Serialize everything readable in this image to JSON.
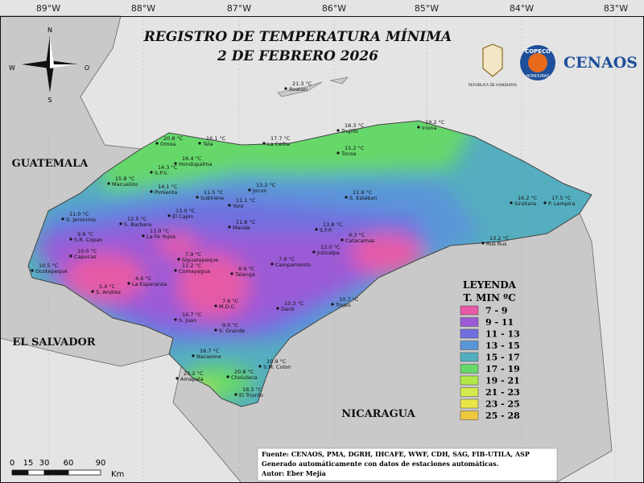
{
  "header": {
    "title_line1": "REGISTRO DE TEMPERATURA MÍNIMA",
    "title_line2": "2 DE FEBRERO 2026",
    "republic": "REPÚBLICA DE HONDURAS",
    "copeco": "COPECO",
    "copeco_sub": "HONDURAS",
    "cenaos": "CENAOS"
  },
  "longitudes": [
    "89°W",
    "88°W",
    "87°W",
    "86°W",
    "85°W",
    "84°W",
    "83°W"
  ],
  "compass": {
    "north": "N",
    "south": "S",
    "west": "W",
    "east": "O"
  },
  "countries": {
    "guatemala": "GUATEMALA",
    "el_salvador": "EL SALVADOR",
    "nicaragua": "NICARAGUA"
  },
  "stations": [
    {
      "temp": "21.3 °C",
      "name": "Roatan"
    },
    {
      "temp": "20.8 °C",
      "name": "Omoa"
    },
    {
      "temp": "16.1 °C",
      "name": "Tela"
    },
    {
      "temp": "17.7 °C",
      "name": "La Ceiba"
    },
    {
      "temp": "18.3 °C",
      "name": "Trujillo"
    },
    {
      "temp": "19.2 °C",
      "name": "Iriona"
    },
    {
      "temp": "16.4 °C",
      "name": "Hondupalma"
    },
    {
      "temp": "15.2 °C",
      "name": "Tocoa"
    },
    {
      "temp": "14.3 °C",
      "name": "S.P.S."
    },
    {
      "temp": "15.8 °C",
      "name": "Macuelizo"
    },
    {
      "temp": "14.1 °C",
      "name": "Pimienta"
    },
    {
      "temp": "13.2 °C",
      "name": "Jocon"
    },
    {
      "temp": "11.5 °C",
      "name": "Subirana"
    },
    {
      "temp": "11.1 °C",
      "name": "Yoro"
    },
    {
      "temp": "11.6 °C",
      "name": "S. Esteban"
    },
    {
      "temp": "16.2 °C",
      "name": "Sirsitara"
    },
    {
      "temp": "17.5 °C",
      "name": "P. Lempira"
    },
    {
      "temp": "13.0 °C",
      "name": "El Cajon"
    },
    {
      "temp": "11.0 °C",
      "name": "S. Jeronimo"
    },
    {
      "temp": "12.5 °C",
      "name": "S. Barbara"
    },
    {
      "temp": "11.8 °C",
      "name": "Marale"
    },
    {
      "temp": "13.8 °C",
      "name": "S.F.P."
    },
    {
      "temp": "11.0 °C",
      "name": "La Fe Yojoa"
    },
    {
      "temp": "9.8 °C",
      "name": "S.R. Copan"
    },
    {
      "temp": "9.3 °C",
      "name": "Catacamas"
    },
    {
      "temp": "13.2 °C",
      "name": "Rus Rus"
    },
    {
      "temp": "10.0 °C",
      "name": "Capucas"
    },
    {
      "temp": "12.0 °C",
      "name": "Juticalpa"
    },
    {
      "temp": "7.9 °C",
      "name": "Siguatepeque"
    },
    {
      "temp": "7.9 °C",
      "name": "Campamento"
    },
    {
      "temp": "10.5 °C",
      "name": "Ocotepeque"
    },
    {
      "temp": "11.2 °C",
      "name": "Comayagua"
    },
    {
      "temp": "8.9 °C",
      "name": "Talanga"
    },
    {
      "temp": "4.6 °C",
      "name": "La Esperanza"
    },
    {
      "temp": "5.4 °C",
      "name": "S. Andres"
    },
    {
      "temp": "7.6 °C",
      "name": "M.D.C."
    },
    {
      "temp": "10.3 °C",
      "name": "Danli"
    },
    {
      "temp": "10.7 °C",
      "name": "Trojes"
    },
    {
      "temp": "14.7 °C",
      "name": "S. Juan"
    },
    {
      "temp": "9.0 °C",
      "name": "S. Grande"
    },
    {
      "temp": "16.7 °C",
      "name": "Nacaome"
    },
    {
      "temp": "10.9 °C",
      "name": "S.M. Colon"
    },
    {
      "temp": "23.2 °C",
      "name": "Amapala"
    },
    {
      "temp": "20.8 °C",
      "name": "Choluteca"
    },
    {
      "temp": "18.3 °C",
      "name": "El Triunfo"
    }
  ],
  "legend": {
    "title": "LEYENDA",
    "subtitle": "T. MIN ºC",
    "items": [
      {
        "label": "7 - 9",
        "color": "#e65aa6"
      },
      {
        "label": "9 - 11",
        "color": "#9b5ad6"
      },
      {
        "label": "11 - 13",
        "color": "#6f6fe0"
      },
      {
        "label": "13 - 15",
        "color": "#5a95d8"
      },
      {
        "label": "15 - 17",
        "color": "#55aebf"
      },
      {
        "label": "17 - 19",
        "color": "#66d86a"
      },
      {
        "label": "19 - 21",
        "color": "#b2e84a"
      },
      {
        "label": "21 - 23",
        "color": "#d4ea4c"
      },
      {
        "label": "23 - 25",
        "color": "#e9e64a"
      },
      {
        "label": "25 - 28",
        "color": "#f0c840"
      }
    ]
  },
  "scale": {
    "ticks": [
      "0",
      "15",
      "30",
      "60",
      "90"
    ],
    "unit": "Km"
  },
  "source": {
    "line1": "Fuente: CENAOS, PMA, DGRH, IHCAFE, WWF, CDH, SAG, FIB-UTILA, ASP",
    "line2": "Generado automáticamente con datos de estaciones automáticas.",
    "line3": "Autor: Eber Mejía"
  }
}
